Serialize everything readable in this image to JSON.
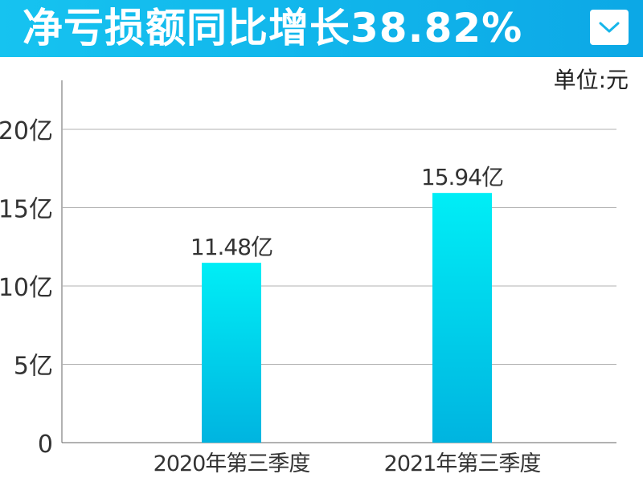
{
  "header": {
    "title": "净亏损额同比增长38.82%",
    "menu_icon": "chevron-down-icon",
    "color": "#16c3f0"
  },
  "chart_data": {
    "type": "bar",
    "title": "净亏损额同比增长38.82%",
    "unit_label": "单位:元",
    "categories": [
      "2020年第三季度",
      "2021年第三季度"
    ],
    "values": [
      11.48,
      15.94
    ],
    "data_labels": [
      "11.48亿",
      "15.94亿"
    ],
    "y_ticks": [
      0,
      5,
      10,
      15,
      20
    ],
    "y_tick_labels": [
      "0",
      "5亿",
      "10亿",
      "15亿",
      "20亿"
    ],
    "ylim": [
      0,
      22
    ],
    "xlabel": "",
    "ylabel": "",
    "grid": true,
    "bar_color_top": "#00eef6",
    "bar_color_bottom": "#00b4e0"
  }
}
